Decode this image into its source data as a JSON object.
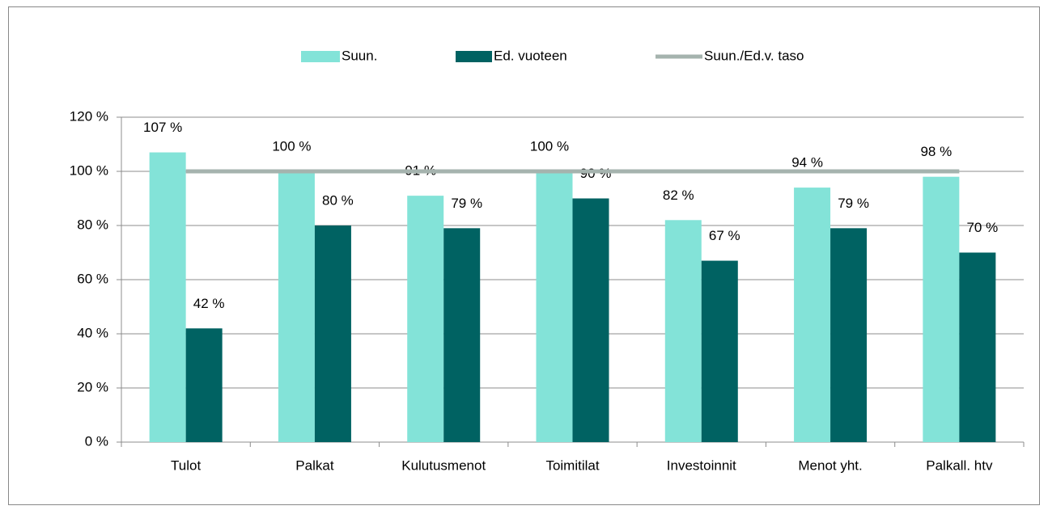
{
  "chart_data": {
    "type": "bar",
    "categories": [
      "Tulot",
      "Palkat",
      "Kulutusmenot",
      "Toimitilat",
      "Investoinnit",
      "Menot yht.",
      "Palkall. htv"
    ],
    "series": [
      {
        "name": "Suun.",
        "type": "bar",
        "color": "#83e3d8",
        "values": [
          107,
          100,
          91,
          100,
          82,
          94,
          98
        ],
        "value_labels": [
          "107 %",
          "100 %",
          "91 %",
          "100 %",
          "82 %",
          "94 %",
          "98 %"
        ]
      },
      {
        "name": "Ed. vuoteen",
        "type": "bar",
        "color": "#006262",
        "values": [
          42,
          80,
          79,
          90,
          67,
          79,
          70
        ],
        "value_labels": [
          "42 %",
          "80 %",
          "79 %",
          "90 %",
          "67 %",
          "79 %",
          "70 %"
        ]
      },
      {
        "name": "Suun./Ed.v. taso",
        "type": "line",
        "color": "#a5b3ae",
        "values": [
          100,
          100,
          100,
          100,
          100,
          100,
          100
        ]
      }
    ],
    "ylim": [
      0,
      120
    ],
    "yticks": [
      {
        "value": 0,
        "label": "0 %"
      },
      {
        "value": 20,
        "label": "20 %"
      },
      {
        "value": 40,
        "label": "40 %"
      },
      {
        "value": 60,
        "label": "60 %"
      },
      {
        "value": 80,
        "label": "80 %"
      },
      {
        "value": 100,
        "label": "100 %"
      },
      {
        "value": 120,
        "label": "120 %"
      }
    ],
    "grid": true,
    "legend": "top"
  }
}
